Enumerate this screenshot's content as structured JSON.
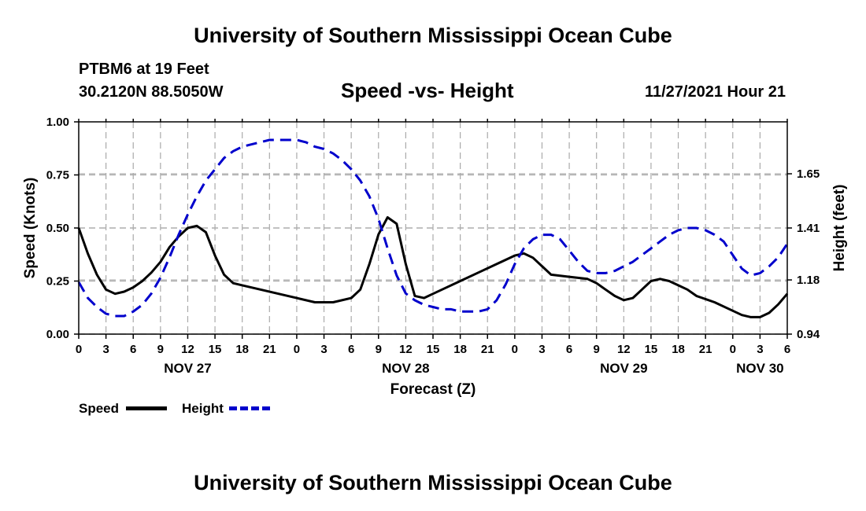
{
  "header": {
    "title": "University of Southern Mississippi Ocean Cube",
    "station": "PTBM6 at 19 Feet",
    "coords": "30.2120N  88.5050W",
    "datetime": "11/27/2021 Hour 21"
  },
  "footer": {
    "title": "University of Southern Mississippi Ocean Cube"
  },
  "colors": {
    "speed": "#000000",
    "height": "#0000cc",
    "grid": "#aaaaaa"
  },
  "chart_data": {
    "type": "line",
    "title": "Speed -vs- Height",
    "xlabel": "Forecast (Z)",
    "ylabel_left": "Speed (Knots)",
    "ylabel_right": "Height (feet)",
    "grid": true,
    "legend_position": "bottom-left",
    "x_unit": "hours since 00Z Nov 27",
    "xlim": [
      0,
      78
    ],
    "ylim_left": [
      0,
      1.0
    ],
    "ylim_right": [
      0.94,
      1.88
    ],
    "x_ticks": [
      0,
      3,
      6,
      9,
      12,
      15,
      18,
      21,
      24,
      27,
      30,
      33,
      36,
      39,
      42,
      45,
      48,
      51,
      54,
      57,
      60,
      63,
      66,
      69,
      72,
      75,
      78
    ],
    "x_tick_labels": [
      "0",
      "3",
      "6",
      "9",
      "12",
      "15",
      "18",
      "21",
      "0",
      "3",
      "6",
      "9",
      "12",
      "15",
      "18",
      "21",
      "0",
      "3",
      "6",
      "9",
      "12",
      "15",
      "18",
      "21",
      "0",
      "3",
      "6"
    ],
    "day_labels": [
      {
        "x": 12,
        "label": "NOV 27"
      },
      {
        "x": 36,
        "label": "NOV 28"
      },
      {
        "x": 60,
        "label": "NOV 29"
      },
      {
        "x": 75,
        "label": "NOV 30"
      }
    ],
    "y_left_ticks": [
      0,
      0.25,
      0.5,
      0.75,
      1.0
    ],
    "y_left_tick_labels": [
      "0.00",
      "0.25",
      "0.50",
      "0.75",
      "1.00"
    ],
    "y_right_ticks": [
      0.94,
      1.18,
      1.41,
      1.65
    ],
    "y_right_tick_labels": [
      "0.94",
      "1.18",
      "1.41",
      "1.65"
    ],
    "series": [
      {
        "name": "Speed",
        "axis": "left",
        "style": "solid",
        "x": [
          0,
          1,
          2,
          3,
          4,
          5,
          6,
          7,
          8,
          9,
          10,
          11,
          12,
          13,
          14,
          15,
          16,
          17,
          18,
          20,
          22,
          24,
          26,
          27,
          28,
          30,
          31,
          32,
          33,
          34,
          35,
          36,
          37,
          38,
          39,
          40,
          42,
          44,
          46,
          48,
          49,
          50,
          51,
          52,
          54,
          56,
          57,
          58,
          59,
          60,
          61,
          62,
          63,
          64,
          65,
          66,
          67,
          68,
          70,
          72,
          73,
          74,
          75,
          76,
          77,
          78
        ],
        "values": [
          0.5,
          0.38,
          0.28,
          0.21,
          0.19,
          0.2,
          0.22,
          0.25,
          0.29,
          0.34,
          0.41,
          0.46,
          0.5,
          0.51,
          0.48,
          0.37,
          0.28,
          0.24,
          0.23,
          0.21,
          0.19,
          0.17,
          0.15,
          0.15,
          0.15,
          0.17,
          0.21,
          0.33,
          0.47,
          0.55,
          0.52,
          0.33,
          0.18,
          0.17,
          0.19,
          0.21,
          0.25,
          0.29,
          0.33,
          0.37,
          0.38,
          0.36,
          0.32,
          0.28,
          0.27,
          0.26,
          0.24,
          0.21,
          0.18,
          0.16,
          0.17,
          0.21,
          0.25,
          0.26,
          0.25,
          0.23,
          0.21,
          0.18,
          0.15,
          0.11,
          0.09,
          0.08,
          0.08,
          0.1,
          0.14,
          0.19
        ]
      },
      {
        "name": "Height",
        "axis": "right",
        "style": "dashed",
        "x": [
          0,
          1,
          2,
          3,
          4,
          5,
          6,
          7,
          8,
          9,
          10,
          11,
          12,
          13,
          14,
          15,
          16,
          17,
          18,
          19,
          20,
          21,
          22,
          23,
          24,
          25,
          26,
          27,
          28,
          29,
          30,
          31,
          32,
          33,
          34,
          35,
          36,
          37,
          38,
          39,
          40,
          41,
          42,
          43,
          44,
          45,
          46,
          47,
          48,
          49,
          50,
          51,
          52,
          53,
          54,
          55,
          56,
          57,
          58,
          59,
          60,
          61,
          62,
          63,
          64,
          65,
          66,
          67,
          68,
          69,
          70,
          71,
          72,
          73,
          74,
          75,
          76,
          77,
          78
        ],
        "values": [
          1.17,
          1.1,
          1.06,
          1.03,
          1.02,
          1.02,
          1.04,
          1.07,
          1.12,
          1.19,
          1.28,
          1.38,
          1.47,
          1.55,
          1.62,
          1.67,
          1.72,
          1.75,
          1.77,
          1.78,
          1.79,
          1.8,
          1.8,
          1.8,
          1.8,
          1.79,
          1.77,
          1.76,
          1.74,
          1.71,
          1.67,
          1.62,
          1.55,
          1.45,
          1.32,
          1.2,
          1.12,
          1.09,
          1.07,
          1.06,
          1.05,
          1.05,
          1.04,
          1.04,
          1.04,
          1.05,
          1.09,
          1.16,
          1.25,
          1.32,
          1.36,
          1.38,
          1.38,
          1.36,
          1.31,
          1.26,
          1.22,
          1.21,
          1.21,
          1.22,
          1.24,
          1.26,
          1.29,
          1.32,
          1.35,
          1.38,
          1.4,
          1.41,
          1.41,
          1.4,
          1.38,
          1.35,
          1.29,
          1.23,
          1.2,
          1.21,
          1.24,
          1.28,
          1.34
        ]
      }
    ]
  }
}
